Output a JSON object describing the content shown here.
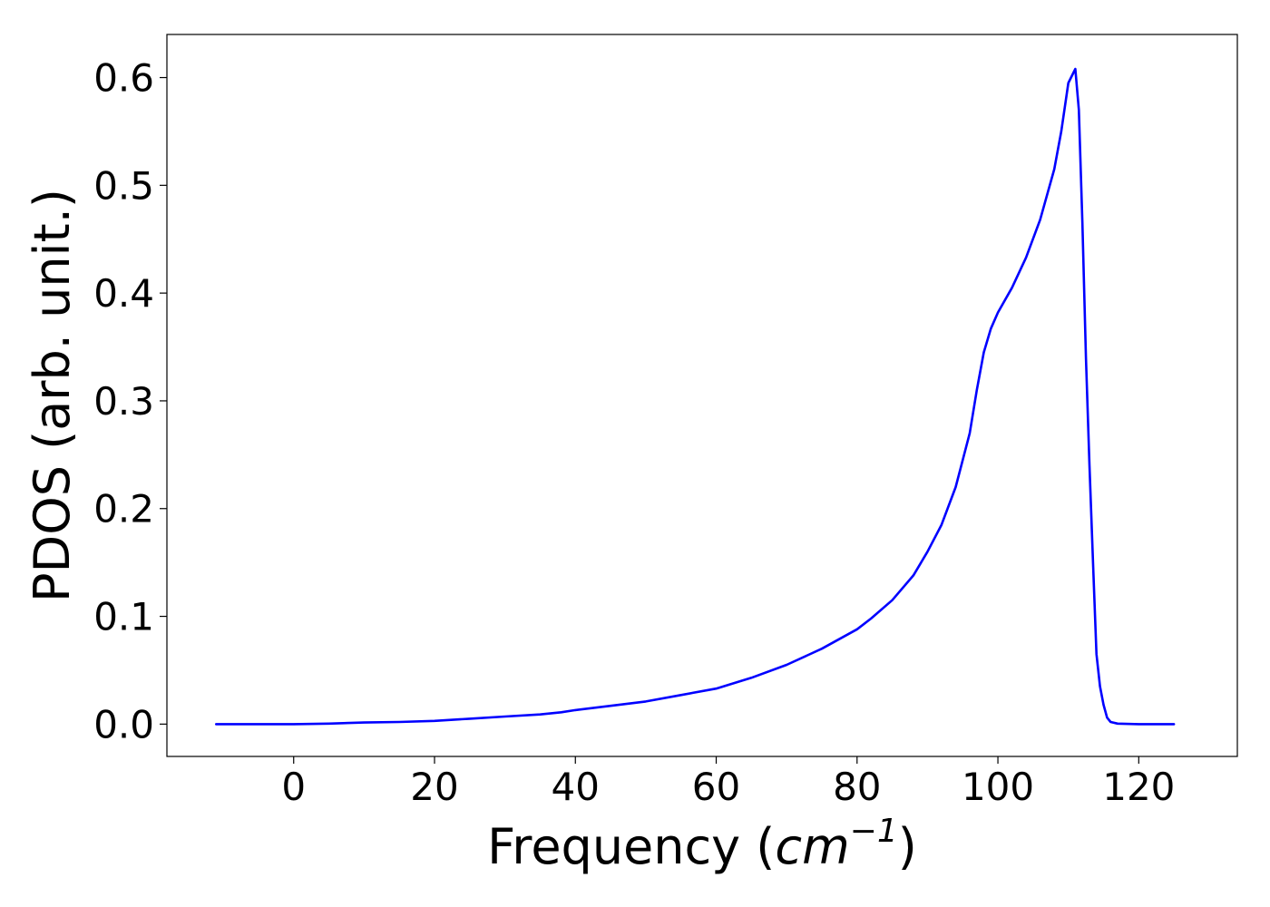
{
  "chart_data": {
    "type": "line",
    "title": "",
    "xlabel": {
      "prefix": "Frequency (",
      "unit": "cm",
      "exponent": "−1",
      "suffix": ")"
    },
    "ylabel": "PDOS (arb. unit.)",
    "xlim": [
      -18,
      134
    ],
    "ylim": [
      -0.03,
      0.64
    ],
    "xticks": [
      0,
      20,
      40,
      60,
      80,
      100,
      120
    ],
    "xtick_labels": [
      "0",
      "20",
      "40",
      "60",
      "80",
      "100",
      "120"
    ],
    "yticks": [
      0.0,
      0.1,
      0.2,
      0.3,
      0.4,
      0.5,
      0.6
    ],
    "ytick_labels": [
      "0.0",
      "0.1",
      "0.2",
      "0.3",
      "0.4",
      "0.5",
      "0.6"
    ],
    "grid": false,
    "legend": "none",
    "series": [
      {
        "color": "#0000ff",
        "x": [
          -11,
          0,
          5,
          10,
          15,
          20,
          25,
          30,
          35,
          38,
          40,
          45,
          50,
          55,
          60,
          65,
          70,
          75,
          80,
          82,
          85,
          88,
          90,
          92,
          94,
          96,
          97,
          98,
          99,
          100,
          102,
          104,
          106,
          108,
          109,
          110,
          111,
          111.5,
          112,
          112.5,
          113,
          113.5,
          114,
          114.5,
          115,
          115.5,
          116,
          117,
          120,
          125
        ],
        "y": [
          0.0,
          0.0,
          0.0005,
          0.0015,
          0.002,
          0.003,
          0.005,
          0.007,
          0.009,
          0.011,
          0.013,
          0.017,
          0.021,
          0.027,
          0.033,
          0.043,
          0.055,
          0.07,
          0.088,
          0.098,
          0.115,
          0.138,
          0.16,
          0.185,
          0.22,
          0.27,
          0.31,
          0.345,
          0.367,
          0.382,
          0.405,
          0.433,
          0.468,
          0.515,
          0.55,
          0.595,
          0.608,
          0.57,
          0.465,
          0.34,
          0.24,
          0.15,
          0.065,
          0.035,
          0.018,
          0.006,
          0.002,
          0.0005,
          0.0,
          0.0
        ]
      }
    ]
  }
}
